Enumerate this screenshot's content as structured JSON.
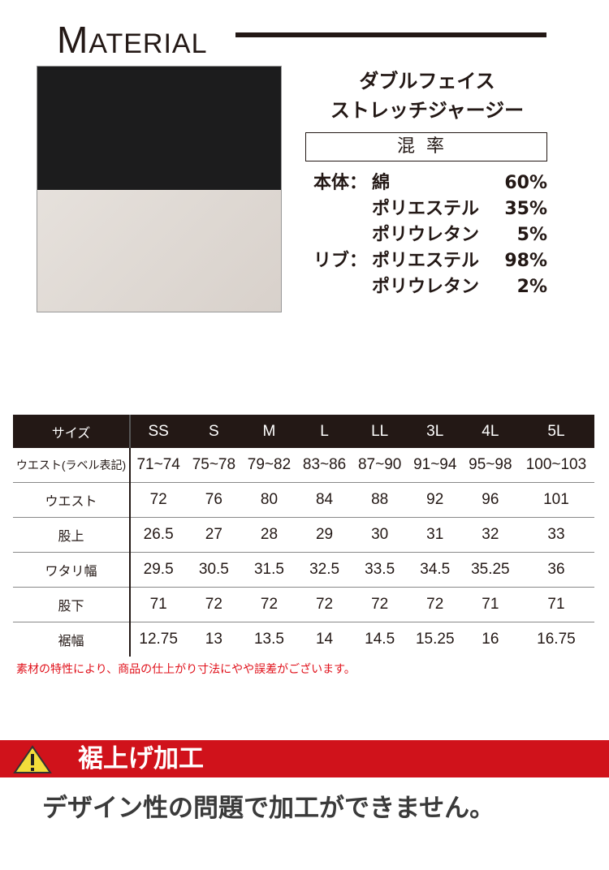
{
  "header": {
    "title_first": "M",
    "title_rest": "ATERIAL"
  },
  "material": {
    "name_line1": "ダブルフェイス",
    "name_line2": "ストレッチジャージー",
    "ratio_label": "混率",
    "composition": [
      {
        "part": "本体：",
        "material": "綿",
        "percent": "60%"
      },
      {
        "part": "",
        "material": "ポリエステル",
        "percent": "35%"
      },
      {
        "part": "",
        "material": "ポリウレタン",
        "percent": "5%"
      },
      {
        "part": "リブ：",
        "material": "ポリエステル",
        "percent": "98%"
      },
      {
        "part": "",
        "material": "ポリウレタン",
        "percent": "2%"
      }
    ],
    "swatch_colors": [
      "#1c1c1d",
      "#e2ddd8"
    ]
  },
  "size_table": {
    "header": [
      "サイズ",
      "SS",
      "S",
      "M",
      "L",
      "LL",
      "3L",
      "4L",
      "5L"
    ],
    "rows": [
      [
        "ウエスト(ラベル表記)",
        "71~74",
        "75~78",
        "79~82",
        "83~86",
        "87~90",
        "91~94",
        "95~98",
        "100~103"
      ],
      [
        "ウエスト",
        "72",
        "76",
        "80",
        "84",
        "88",
        "92",
        "96",
        "101"
      ],
      [
        "股上",
        "26.5",
        "27",
        "28",
        "29",
        "30",
        "31",
        "32",
        "33"
      ],
      [
        "ワタリ幅",
        "29.5",
        "30.5",
        "31.5",
        "32.5",
        "33.5",
        "34.5",
        "35.25",
        "36"
      ],
      [
        "股下",
        "71",
        "72",
        "72",
        "72",
        "72",
        "72",
        "71",
        "71"
      ],
      [
        "裾幅",
        "12.75",
        "13",
        "13.5",
        "14",
        "14.5",
        "15.25",
        "16",
        "16.75"
      ]
    ]
  },
  "note": "素材の特性により、商品の仕上がり寸法にやや誤差がございます。",
  "hemming": {
    "title": "裾上げ加工",
    "message": "デザイン性の問題で加工ができません。",
    "banner_color": "#d0121b"
  }
}
